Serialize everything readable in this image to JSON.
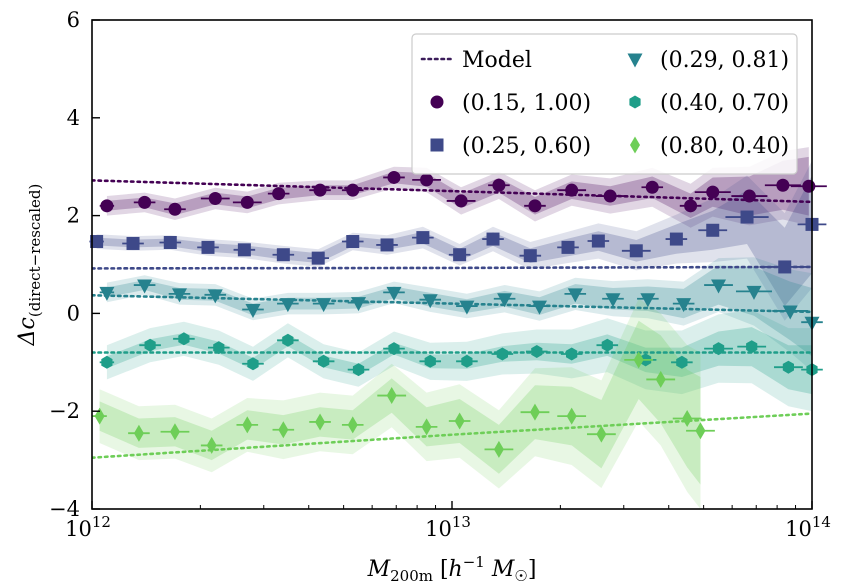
{
  "chart_data": {
    "type": "scatter",
    "x_scale": "log",
    "xlim": [
      1000000000000.0,
      100000000000000.0
    ],
    "ylim": [
      -4,
      6
    ],
    "xlabel": "M_200m [h^-1 M_☉]",
    "xlabel_parts": {
      "base": "M",
      "sub": "200m",
      "bracket_open": " [",
      "h": "h",
      "exp": "−1",
      "msun": " M",
      "sun_sub": "☉",
      "bracket_close": "]"
    },
    "ylabel": "Δc_(direct−rescaled)",
    "ylabel_parts": {
      "delta": "Δc",
      "sub": "(direct−rescaled)"
    },
    "x_ticks": [
      {
        "value": 1000000000000.0,
        "base": "10",
        "exp": "12"
      },
      {
        "value": 10000000000000.0,
        "base": "10",
        "exp": "13"
      },
      {
        "value": 100000000000000.0,
        "base": "10",
        "exp": "14"
      }
    ],
    "y_ticks": [
      {
        "value": -4,
        "label": "−4"
      },
      {
        "value": -2,
        "label": "−2"
      },
      {
        "value": 0,
        "label": "0"
      },
      {
        "value": 2,
        "label": "2"
      },
      {
        "value": 4,
        "label": "4"
      },
      {
        "value": 6,
        "label": "6"
      }
    ],
    "legend": {
      "position": "top-right",
      "entries": [
        {
          "label": "Model",
          "kind": "line",
          "color": "#3b1c5a"
        },
        {
          "label": "(0.15, 1.00)",
          "kind": "circle",
          "color": "#440154"
        },
        {
          "label": "(0.25, 0.60)",
          "kind": "square",
          "color": "#3e4989"
        },
        {
          "label": "(0.29, 0.81)",
          "kind": "triangle",
          "color": "#26828e"
        },
        {
          "label": "(0.40, 0.70)",
          "kind": "hexagon",
          "color": "#1f9e89"
        },
        {
          "label": "(0.80, 0.40)",
          "kind": "diamond",
          "color": "#6ece58"
        }
      ]
    },
    "series": [
      {
        "name": "(0.15, 1.00)",
        "marker": "circle",
        "color": "#440154",
        "x": [
          1100000000000.0,
          1400000000000.0,
          1700000000000.0,
          2200000000000.0,
          2700000000000.0,
          3300000000000.0,
          4300000000000.0,
          5300000000000.0,
          6900000000000.0,
          8500000000000.0,
          10600000000000.0,
          13500000000000.0,
          17000000000000.0,
          21500000000000.0,
          27500000000000.0,
          36000000000000.0,
          46000000000000.0,
          53000000000000.0,
          67000000000000.0,
          83000000000000.0,
          98000000000000.0
        ],
        "y": [
          2.2,
          2.27,
          2.13,
          2.35,
          2.27,
          2.45,
          2.52,
          2.52,
          2.78,
          2.73,
          2.3,
          2.62,
          2.2,
          2.52,
          2.4,
          2.58,
          2.2,
          2.48,
          2.4,
          2.62,
          2.6
        ],
        "xerr": [
          0.02,
          0.03,
          0.03,
          0.04,
          0.04,
          0.03,
          0.03,
          0.03,
          0.03,
          0.04,
          0.04,
          0.03,
          0.03,
          0.04,
          0.04,
          0.03,
          0.03,
          0.05,
          0.05,
          0.05,
          0.05
        ],
        "band_inner": [
          0.1,
          0.1,
          0.12,
          0.12,
          0.12,
          0.12,
          0.1,
          0.1,
          0.12,
          0.14,
          0.15,
          0.15,
          0.18,
          0.18,
          0.2,
          0.22,
          0.25,
          0.3,
          0.4,
          0.5,
          0.6
        ],
        "band_outer": [
          0.2,
          0.2,
          0.22,
          0.22,
          0.22,
          0.22,
          0.2,
          0.2,
          0.22,
          0.25,
          0.28,
          0.28,
          0.32,
          0.32,
          0.36,
          0.4,
          0.45,
          0.5,
          0.6,
          0.7,
          0.8
        ],
        "model": {
          "x": [
            1000000000000.0,
            10000000000000.0,
            100000000000000.0
          ],
          "y": [
            2.72,
            2.5,
            2.28
          ]
        }
      },
      {
        "name": "(0.25, 0.60)",
        "marker": "square",
        "color": "#3e4989",
        "x": [
          1030000000000.0,
          1300000000000.0,
          1650000000000.0,
          2100000000000.0,
          2650000000000.0,
          3400000000000.0,
          4250000000000.0,
          5300000000000.0,
          6600000000000.0,
          8300000000000.0,
          10500000000000.0,
          13000000000000.0,
          16500000000000.0,
          21000000000000.0,
          25500000000000.0,
          32500000000000.0,
          42000000000000.0,
          53000000000000.0,
          66000000000000.0,
          84000000000000.0,
          100000000000000.0
        ],
        "y": [
          1.47,
          1.43,
          1.45,
          1.35,
          1.3,
          1.2,
          1.13,
          1.47,
          1.4,
          1.55,
          1.2,
          1.52,
          1.18,
          1.35,
          1.48,
          1.28,
          1.52,
          1.7,
          1.97,
          0.95,
          1.82
        ],
        "xerr": [
          0.02,
          0.03,
          0.03,
          0.03,
          0.03,
          0.03,
          0.03,
          0.03,
          0.03,
          0.03,
          0.03,
          0.03,
          0.03,
          0.03,
          0.03,
          0.04,
          0.03,
          0.04,
          0.06,
          0.07,
          0.04
        ],
        "band_inner": [
          0.08,
          0.08,
          0.08,
          0.09,
          0.09,
          0.1,
          0.1,
          0.1,
          0.1,
          0.12,
          0.12,
          0.14,
          0.15,
          0.18,
          0.2,
          0.22,
          0.3,
          0.4,
          0.55,
          0.8,
          1.0
        ],
        "band_outer": [
          0.15,
          0.15,
          0.15,
          0.17,
          0.17,
          0.18,
          0.18,
          0.18,
          0.2,
          0.22,
          0.22,
          0.25,
          0.28,
          0.32,
          0.36,
          0.4,
          0.5,
          0.65,
          0.85,
          1.1,
          1.3
        ],
        "model": {
          "x": [
            1000000000000.0,
            10000000000000.0,
            100000000000000.0
          ],
          "y": [
            0.92,
            0.93,
            0.95
          ]
        }
      },
      {
        "name": "(0.29, 0.81)",
        "marker": "triangle",
        "color": "#26828e",
        "x": [
          1100000000000.0,
          1400000000000.0,
          1750000000000.0,
          2200000000000.0,
          2800000000000.0,
          3500000000000.0,
          4400000000000.0,
          5500000000000.0,
          6900000000000.0,
          8700000000000.0,
          11000000000000.0,
          14000000000000.0,
          17500000000000.0,
          22000000000000.0,
          28000000000000.0,
          35000000000000.0,
          44000000000000.0,
          55000000000000.0,
          69000000000000.0,
          87000000000000.0,
          100000000000000.0
        ],
        "y": [
          0.43,
          0.58,
          0.4,
          0.38,
          0.08,
          0.2,
          0.2,
          0.22,
          0.43,
          0.28,
          0.15,
          0.3,
          0.15,
          0.4,
          0.3,
          0.3,
          0.2,
          0.58,
          0.45,
          0.05,
          -0.18
        ],
        "xerr": [
          0.02,
          0.03,
          0.03,
          0.03,
          0.03,
          0.03,
          0.03,
          0.03,
          0.03,
          0.03,
          0.03,
          0.03,
          0.03,
          0.03,
          0.03,
          0.03,
          0.03,
          0.04,
          0.05,
          0.05,
          0.03
        ],
        "band_inner": [
          0.1,
          0.1,
          0.12,
          0.12,
          0.12,
          0.12,
          0.12,
          0.12,
          0.12,
          0.14,
          0.14,
          0.16,
          0.18,
          0.2,
          0.22,
          0.25,
          0.3,
          0.4,
          0.5,
          0.6,
          0.7
        ],
        "band_outer": [
          0.2,
          0.2,
          0.22,
          0.22,
          0.22,
          0.22,
          0.22,
          0.22,
          0.22,
          0.25,
          0.25,
          0.28,
          0.3,
          0.33,
          0.36,
          0.4,
          0.45,
          0.55,
          0.7,
          0.85,
          1.0
        ],
        "model": {
          "x": [
            1000000000000.0,
            10000000000000.0,
            100000000000000.0
          ],
          "y": [
            0.37,
            0.2,
            0.03
          ]
        }
      },
      {
        "name": "(0.40, 0.70)",
        "marker": "hexagon",
        "color": "#1f9e89",
        "x": [
          1100000000000.0,
          1450000000000.0,
          1800000000000.0,
          2250000000000.0,
          2800000000000.0,
          3500000000000.0,
          4400000000000.0,
          5500000000000.0,
          6900000000000.0,
          8700000000000.0,
          11000000000000.0,
          13800000000000.0,
          17200000000000.0,
          21500000000000.0,
          27000000000000.0,
          34500000000000.0,
          43500000000000.0,
          55000000000000.0,
          68000000000000.0,
          86000000000000.0,
          100000000000000.0
        ],
        "y": [
          -1.0,
          -0.65,
          -0.52,
          -0.7,
          -1.03,
          -0.55,
          -0.98,
          -1.15,
          -0.72,
          -0.98,
          -0.98,
          -0.83,
          -0.78,
          -0.83,
          -0.65,
          -0.95,
          -1.0,
          -0.72,
          -0.68,
          -1.1,
          -1.15
        ],
        "xerr": [
          0.02,
          0.03,
          0.03,
          0.03,
          0.03,
          0.03,
          0.03,
          0.03,
          0.03,
          0.03,
          0.03,
          0.03,
          0.03,
          0.03,
          0.03,
          0.03,
          0.03,
          0.04,
          0.04,
          0.04,
          0.03
        ],
        "band_inner": [
          0.12,
          0.12,
          0.12,
          0.12,
          0.12,
          0.12,
          0.12,
          0.12,
          0.12,
          0.14,
          0.15,
          0.16,
          0.18,
          0.2,
          0.22,
          0.25,
          0.3,
          0.35,
          0.4,
          0.45,
          0.5
        ],
        "band_outer": [
          0.35,
          0.35,
          0.35,
          0.35,
          0.35,
          0.35,
          0.35,
          0.35,
          0.35,
          0.38,
          0.4,
          0.42,
          0.45,
          0.5,
          0.55,
          0.6,
          0.65,
          0.7,
          0.75,
          0.8,
          0.85
        ],
        "model": {
          "x": [
            1000000000000.0,
            10000000000000.0,
            100000000000000.0
          ],
          "y": [
            -0.8,
            -0.8,
            -0.8
          ]
        }
      },
      {
        "name": "(0.80, 0.40)",
        "marker": "diamond",
        "color": "#6ece58",
        "x": [
          1050000000000.0,
          1350000000000.0,
          1700000000000.0,
          2150000000000.0,
          2700000000000.0,
          3400000000000.0,
          4300000000000.0,
          5300000000000.0,
          6800000000000.0,
          8500000000000.0,
          10500000000000.0,
          13500000000000.0,
          17000000000000.0,
          21500000000000.0,
          26000000000000.0,
          33000000000000.0,
          38000000000000.0,
          45000000000000.0,
          49000000000000.0
        ],
        "y": [
          -2.1,
          -2.45,
          -2.42,
          -2.7,
          -2.28,
          -2.38,
          -2.22,
          -2.28,
          -1.68,
          -2.32,
          -2.2,
          -2.78,
          -2.02,
          -2.1,
          -2.47,
          -0.95,
          -1.35,
          -2.15,
          -2.4
        ],
        "xerr": [
          0.02,
          0.03,
          0.04,
          0.03,
          0.03,
          0.03,
          0.03,
          0.03,
          0.04,
          0.03,
          0.03,
          0.04,
          0.04,
          0.04,
          0.04,
          0.04,
          0.04,
          0.04,
          0.04
        ],
        "band_inner": [
          0.3,
          0.3,
          0.3,
          0.3,
          0.3,
          0.3,
          0.3,
          0.3,
          0.35,
          0.4,
          0.45,
          0.5,
          0.55,
          0.6,
          0.7,
          0.8,
          0.9,
          1.0,
          1.1
        ],
        "band_outer": [
          0.55,
          0.55,
          0.55,
          0.55,
          0.55,
          0.6,
          0.6,
          0.6,
          0.65,
          0.7,
          0.75,
          0.8,
          0.9,
          1.0,
          1.1,
          1.25,
          1.35,
          1.5,
          1.6
        ],
        "model": {
          "x": [
            1000000000000.0,
            10000000000000.0,
            100000000000000.0
          ],
          "y": [
            -2.95,
            -2.48,
            -2.05
          ]
        }
      }
    ]
  }
}
